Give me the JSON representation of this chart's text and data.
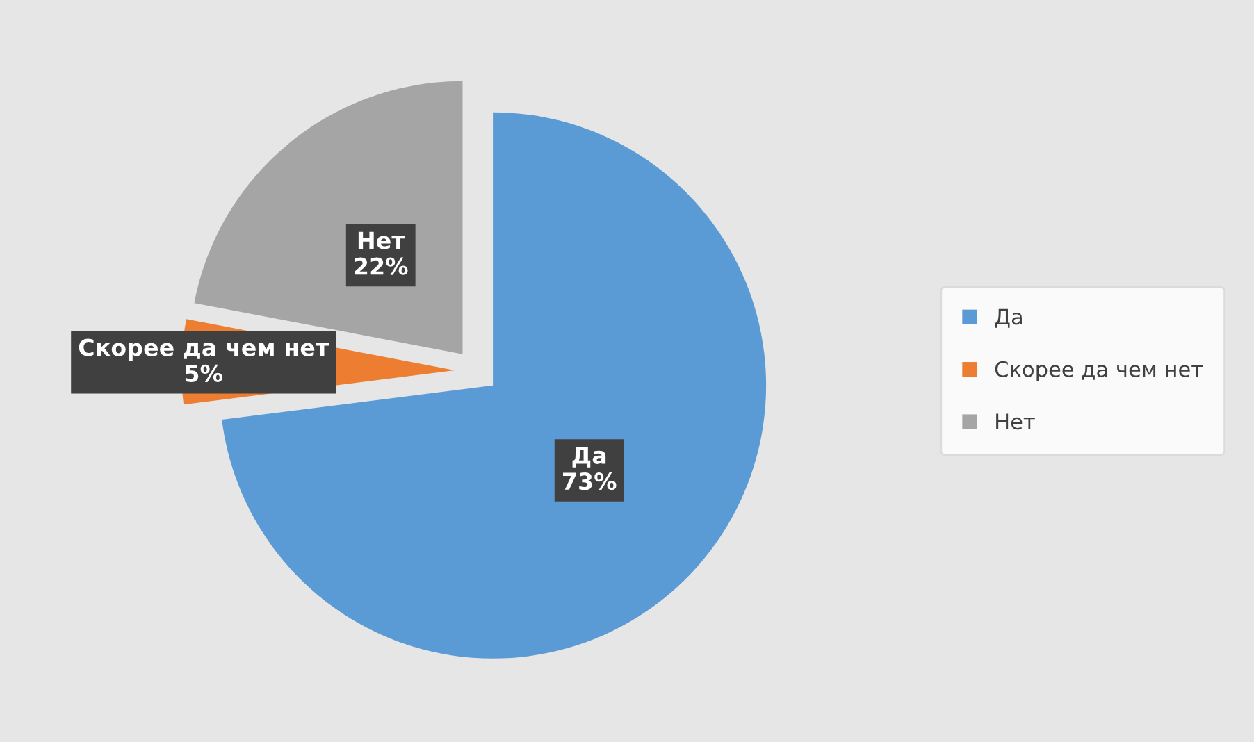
{
  "chart_data": {
    "type": "pie",
    "categories": [
      "Да",
      "Скорее да чем нет",
      "Нет"
    ],
    "values": [
      73,
      5,
      22
    ],
    "colors": [
      "#5b9bd5",
      "#ed7d31",
      "#a5a5a5"
    ],
    "value_labels": [
      "73%",
      "5%",
      "22%"
    ],
    "legend": "right"
  }
}
